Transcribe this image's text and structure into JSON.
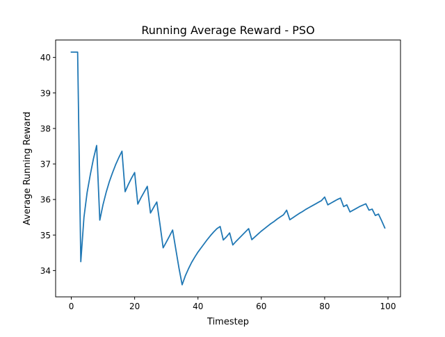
{
  "chart_data": {
    "type": "line",
    "title": "Running Average Reward - PSO",
    "xlabel": "Timestep",
    "ylabel": "Average Running Reward",
    "xlim": [
      -4.95,
      103.95
    ],
    "ylim": [
      33.26,
      40.49
    ],
    "xticks": [
      0,
      20,
      40,
      60,
      80,
      100
    ],
    "yticks": [
      34,
      35,
      36,
      37,
      38,
      39,
      40
    ],
    "grid": false,
    "series": [
      {
        "color": "#1f77b4",
        "x": [
          0,
          1,
          2,
          3,
          4,
          5,
          6,
          7,
          8,
          9,
          10,
          11,
          12,
          13,
          14,
          15,
          16,
          17,
          18,
          19,
          20,
          21,
          22,
          23,
          24,
          25,
          26,
          27,
          28,
          29,
          30,
          31,
          32,
          33,
          34,
          35,
          36,
          37,
          38,
          39,
          40,
          41,
          42,
          43,
          44,
          45,
          46,
          47,
          48,
          49,
          50,
          51,
          52,
          53,
          54,
          55,
          56,
          57,
          58,
          59,
          60,
          61,
          62,
          63,
          64,
          65,
          66,
          67,
          68,
          69,
          70,
          71,
          72,
          73,
          74,
          75,
          76,
          77,
          78,
          79,
          80,
          81,
          82,
          83,
          84,
          85,
          86,
          87,
          88,
          89,
          90,
          91,
          92,
          93,
          94,
          95,
          96,
          97,
          98,
          99
        ],
        "y": [
          40.15,
          40.15,
          40.15,
          34.25,
          35.5,
          36.2,
          36.7,
          37.15,
          37.52,
          35.42,
          35.85,
          36.2,
          36.5,
          36.75,
          36.98,
          37.18,
          37.36,
          36.22,
          36.42,
          36.6,
          36.76,
          35.87,
          36.05,
          36.21,
          36.37,
          35.62,
          35.78,
          35.93,
          35.3,
          34.64,
          34.8,
          34.97,
          35.14,
          34.6,
          34.07,
          33.6,
          33.85,
          34.05,
          34.23,
          34.38,
          34.52,
          34.64,
          34.76,
          34.88,
          34.99,
          35.09,
          35.18,
          35.24,
          34.86,
          34.95,
          35.06,
          34.72,
          34.82,
          34.91,
          35.0,
          35.09,
          35.18,
          34.87,
          34.95,
          35.03,
          35.11,
          35.18,
          35.25,
          35.32,
          35.38,
          35.45,
          35.51,
          35.57,
          35.7,
          35.43,
          35.49,
          35.55,
          35.61,
          35.66,
          35.72,
          35.77,
          35.82,
          35.87,
          35.92,
          35.97,
          36.07,
          35.85,
          35.9,
          35.95,
          36.0,
          36.04,
          35.8,
          35.85,
          35.65,
          35.7,
          35.75,
          35.8,
          35.84,
          35.88,
          35.7,
          35.73,
          35.55,
          35.59,
          35.4,
          35.2
        ]
      }
    ]
  }
}
